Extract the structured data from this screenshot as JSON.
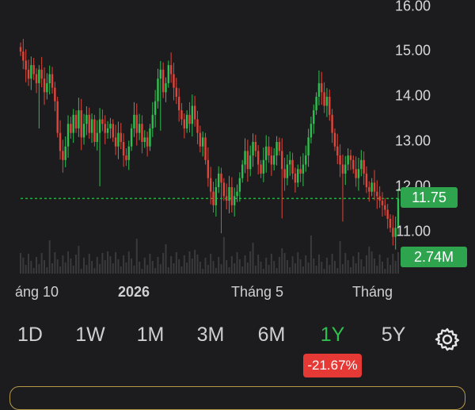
{
  "chart": {
    "y_ticks": [
      "16.00",
      "15.00",
      "14.00",
      "13.00",
      "12.00",
      "11.00"
    ],
    "y_tick_values": [
      16,
      15,
      14,
      13,
      12,
      11
    ],
    "x_ticks": [
      "áng 10",
      "2026",
      "Tháng 5",
      "Tháng"
    ],
    "current_price_label": "11.75",
    "current_price": 11.75,
    "volume_label": "2.74M",
    "colors": {
      "up": "#2ec04f",
      "down": "#e0453a",
      "price_line": "#2ec04f"
    }
  },
  "chart_data": {
    "type": "candlestick",
    "y_range": [
      10.5,
      16.2
    ],
    "closes": [
      15.0,
      14.8,
      14.6,
      14.4,
      14.7,
      14.5,
      14.3,
      14.6,
      14.4,
      14.1,
      14.3,
      14.5,
      14.2,
      13.9,
      13.2,
      12.8,
      12.6,
      12.9,
      13.4,
      13.2,
      13.6,
      13.3,
      13.7,
      13.1,
      13.4,
      13.6,
      13.2,
      13.5,
      13.0,
      13.2,
      13.5,
      13.4,
      13.2,
      13.3,
      13.4,
      13.1,
      12.9,
      13.2,
      13.0,
      12.7,
      12.6,
      12.9,
      13.3,
      13.6,
      13.2,
      13.4,
      13.0,
      13.1,
      12.9,
      13.3,
      13.6,
      13.9,
      14.4,
      14.6,
      14.1,
      14.3,
      14.7,
      14.5,
      14.2,
      14.0,
      13.7,
      13.5,
      13.3,
      13.6,
      13.4,
      13.8,
      13.5,
      13.2,
      12.9,
      13.1,
      12.6,
      12.2,
      11.9,
      11.6,
      12.0,
      12.3,
      12.1,
      11.8,
      11.7,
      12.0,
      11.6,
      11.8,
      11.9,
      12.2,
      12.5,
      12.8,
      12.4,
      12.7,
      13.0,
      12.8,
      12.5,
      12.3,
      12.6,
      12.9,
      12.7,
      12.5,
      12.7,
      13.0,
      12.8,
      12.4,
      12.2,
      12.5,
      12.6,
      12.3,
      12.1,
      12.4,
      12.3,
      12.5,
      12.7,
      13.1,
      13.4,
      13.7,
      14.0,
      14.3,
      14.1,
      13.8,
      14.0,
      13.6,
      13.2,
      12.9,
      12.7,
      12.5,
      12.3,
      12.5,
      12.7,
      12.6,
      12.4,
      12.2,
      12.4,
      12.6,
      12.3,
      12.0,
      11.9,
      12.1,
      11.9,
      11.8,
      11.7,
      11.6,
      11.5,
      11.3,
      11.1,
      10.9,
      11.1,
      11.75
    ],
    "current_price": 11.75
  },
  "ranges": [
    {
      "label": "1D",
      "active": false
    },
    {
      "label": "1W",
      "active": false
    },
    {
      "label": "1M",
      "active": false
    },
    {
      "label": "3M",
      "active": false
    },
    {
      "label": "6M",
      "active": false
    },
    {
      "label": "1Y",
      "active": true
    },
    {
      "label": "5Y",
      "active": false
    }
  ],
  "change_pct": "-21.67%",
  "icons": {
    "settings": "gear-icon"
  }
}
